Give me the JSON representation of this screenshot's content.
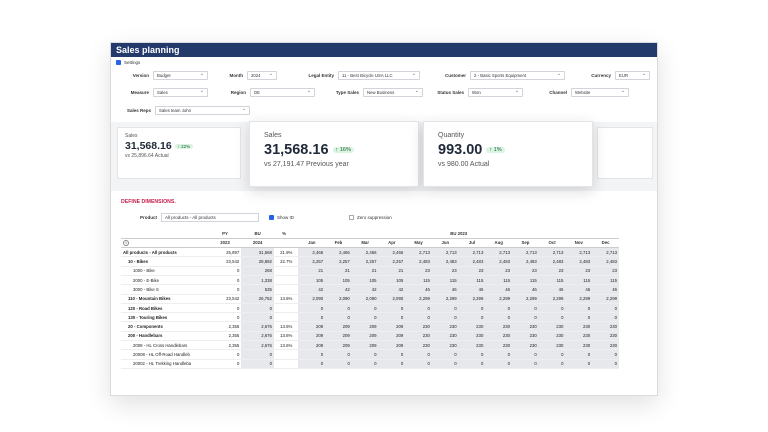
{
  "window": {
    "title": "Sales planning"
  },
  "settings": {
    "label": "Settings"
  },
  "filters": [
    {
      "label": "Version",
      "value": "Budget"
    },
    {
      "label": "Month",
      "value": "2024"
    },
    {
      "label": "Legal Entity",
      "value": "11 - Best Bicycle USA LLC"
    },
    {
      "label": "Customer",
      "value": "2 - Basic Sports Equipment"
    },
    {
      "label": "Currency",
      "value": "EUR"
    },
    {
      "label": "Measure",
      "value": "Sales"
    },
    {
      "label": "Region",
      "value": "DE"
    },
    {
      "label": "Type Sales",
      "value": "New Business"
    },
    {
      "label": "Status Sales",
      "value": "Won"
    },
    {
      "label": "Channel",
      "value": "Website"
    },
    {
      "label": "Sales Reps",
      "value": "Sales team John"
    }
  ],
  "kpis": {
    "small": {
      "title": "Sales",
      "value": "31,568.16",
      "badge": "↑ 22%",
      "sub": "vs 25,896.64 Actual"
    },
    "sales": {
      "title": "Sales",
      "value": "31,568.16",
      "badge": "↑ 16%",
      "sub": "vs 27,191.47 Previous year"
    },
    "quantity": {
      "title": "Quantity",
      "value": "993.00",
      "badge": "↑ 1%",
      "sub": "vs 980.00 Actual"
    }
  },
  "dimensions": {
    "heading": "DEFINE DIMENSIONS.",
    "product_label": "Product",
    "product_value": "All products - All products",
    "show_id": "Show ID",
    "zero_suppression": "Zero suppression"
  },
  "grid": {
    "header_top": [
      "PY",
      "BU",
      "%",
      "BU 2023"
    ],
    "header_sub": [
      "2023",
      "2024"
    ],
    "months": [
      "Jan",
      "Feb",
      "Mar",
      "Apr",
      "May",
      "Jun",
      "Jul",
      "Aug",
      "Sep",
      "Oct",
      "Nov",
      "Dec"
    ],
    "rows": [
      {
        "name": "All products - All products",
        "bold": true,
        "indent": 0,
        "py": "25,897",
        "bu": "31,568",
        "pct": "21.9%",
        "m": [
          "2,466",
          "2,466",
          "2,466",
          "2,466",
          "2,713",
          "2,713",
          "2,713",
          "2,713",
          "2,713",
          "2,713",
          "2,713",
          "2,713"
        ]
      },
      {
        "name": "10 - Bikes",
        "bold": true,
        "indent": 1,
        "py": "23,542",
        "bu": "28,892",
        "pct": "22.7%",
        "m": [
          "2,257",
          "2,257",
          "2,257",
          "2,257",
          "2,483",
          "2,483",
          "2,483",
          "2,483",
          "2,483",
          "2,483",
          "2,483",
          "2,483"
        ]
      },
      {
        "name": "1000 - Bike",
        "bold": false,
        "indent": 2,
        "py": "0",
        "bu": "268",
        "pct": "",
        "m": [
          "21",
          "21",
          "21",
          "21",
          "23",
          "23",
          "23",
          "23",
          "23",
          "23",
          "23",
          "23"
        ]
      },
      {
        "name": "2000 - E-Bike",
        "bold": false,
        "indent": 2,
        "py": "0",
        "bu": "1,338",
        "pct": "",
        "m": [
          "105",
          "105",
          "105",
          "105",
          "115",
          "115",
          "115",
          "115",
          "115",
          "115",
          "115",
          "115"
        ]
      },
      {
        "name": "3000 - Bike S",
        "bold": false,
        "indent": 2,
        "py": "0",
        "bu": "535",
        "pct": "",
        "m": [
          "42",
          "42",
          "42",
          "42",
          "46",
          "46",
          "46",
          "46",
          "46",
          "46",
          "46",
          "46"
        ]
      },
      {
        "name": "110 - Mountain Bikes",
        "bold": true,
        "indent": 1,
        "py": "23,542",
        "bu": "26,752",
        "pct": "13.6%",
        "m": [
          "2,090",
          "2,090",
          "2,090",
          "2,090",
          "2,299",
          "2,299",
          "2,299",
          "2,299",
          "2,299",
          "2,299",
          "2,299",
          "2,299"
        ]
      },
      {
        "name": "120 - Road Bikes",
        "bold": true,
        "indent": 1,
        "py": "0",
        "bu": "0",
        "pct": "",
        "m": [
          "0",
          "0",
          "0",
          "0",
          "0",
          "0",
          "0",
          "0",
          "0",
          "0",
          "0",
          "0"
        ]
      },
      {
        "name": "130 - Touring Bikes",
        "bold": true,
        "indent": 1,
        "py": "0",
        "bu": "0",
        "pct": "",
        "m": [
          "0",
          "0",
          "0",
          "0",
          "0",
          "0",
          "0",
          "0",
          "0",
          "0",
          "0",
          "0"
        ]
      },
      {
        "name": "20 - Components",
        "bold": true,
        "indent": 1,
        "py": "2,355",
        "bu": "2,676",
        "pct": "13.6%",
        "m": [
          "209",
          "209",
          "209",
          "209",
          "230",
          "230",
          "230",
          "230",
          "230",
          "230",
          "230",
          "230"
        ]
      },
      {
        "name": "200 - Handlebars",
        "bold": true,
        "indent": 1,
        "py": "2,355",
        "bu": "2,676",
        "pct": "13.6%",
        "m": [
          "209",
          "209",
          "209",
          "209",
          "230",
          "230",
          "230",
          "230",
          "230",
          "230",
          "230",
          "230"
        ]
      },
      {
        "name": "2008 - HL Cross Handlebars",
        "bold": false,
        "indent": 2,
        "py": "2,355",
        "bu": "2,676",
        "pct": "13.6%",
        "m": [
          "209",
          "209",
          "209",
          "209",
          "230",
          "230",
          "230",
          "230",
          "230",
          "230",
          "230",
          "230"
        ]
      },
      {
        "name": "20008 - HL Off-Road Handleb",
        "bold": false,
        "indent": 2,
        "py": "0",
        "bu": "0",
        "pct": "",
        "m": [
          "0",
          "0",
          "0",
          "0",
          "0",
          "0",
          "0",
          "0",
          "0",
          "0",
          "0",
          "0"
        ]
      },
      {
        "name": "20002 - HL Trekking Handleba",
        "bold": false,
        "indent": 2,
        "py": "0",
        "bu": "0",
        "pct": "",
        "m": [
          "0",
          "0",
          "0",
          "0",
          "0",
          "0",
          "0",
          "0",
          "0",
          "0",
          "0",
          "0"
        ]
      }
    ]
  }
}
